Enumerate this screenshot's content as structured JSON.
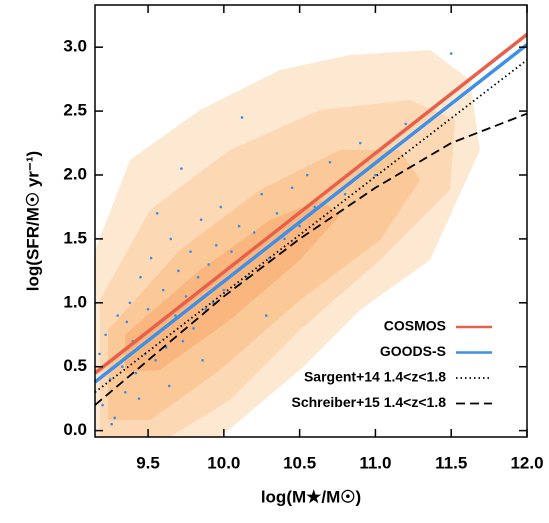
{
  "chart_data": {
    "type": "line",
    "xlabel": "log(M★/M☉)",
    "ylabel": "log(SFR/M☉ yr⁻¹)",
    "xlim": [
      9.15,
      12.0
    ],
    "ylim": [
      -0.05,
      3.33
    ],
    "xticks": [
      9.5,
      {
        "value": 10,
        "label": "10.0"
      },
      10.5,
      {
        "value": 11,
        "label": "11.0"
      },
      11.5,
      {
        "value": 12,
        "label": "12.0"
      }
    ],
    "yticks": [
      {
        "value": 0,
        "label": "0.0"
      },
      0.5,
      {
        "value": 1,
        "label": "1.0"
      },
      1.5,
      {
        "value": 2,
        "label": "2.0"
      },
      2.5,
      {
        "value": 3,
        "label": "3.0"
      }
    ],
    "legend": "lower right",
    "series": [
      {
        "name": "COSMOS",
        "color": "#e8604a",
        "style": "solid",
        "x": [
          9.15,
          12.0
        ],
        "values": [
          0.45,
          3.1
        ]
      },
      {
        "name": "GOODS-S",
        "color": "#3d8fe8",
        "style": "solid",
        "x": [
          9.15,
          12.0
        ],
        "values": [
          0.38,
          3.02
        ]
      },
      {
        "name": "Sargent+14 1.4<z<1.8",
        "color": "#000000",
        "style": "dotted",
        "x": [
          9.15,
          12.0
        ],
        "values": [
          0.3,
          2.9
        ]
      },
      {
        "name": "Schreiber+15 1.4<z<1.8",
        "color": "#000000",
        "style": "dashed",
        "x": [
          9.15,
          9.5,
          10.0,
          10.5,
          11.0,
          11.5,
          12.0
        ],
        "values": [
          0.2,
          0.55,
          1.05,
          1.5,
          1.9,
          2.25,
          2.48
        ]
      }
    ],
    "points": {
      "color": "#3a8ee6",
      "x": [
        9.2,
        9.22,
        9.25,
        9.28,
        9.3,
        9.33,
        9.35,
        9.38,
        9.4,
        9.42,
        9.45,
        9.48,
        9.5,
        9.52,
        9.55,
        9.58,
        9.6,
        9.62,
        9.65,
        9.68,
        9.7,
        9.73,
        9.75,
        9.78,
        9.8,
        9.83,
        9.85,
        9.88,
        9.9,
        9.93,
        9.95,
        9.98,
        10.0,
        10.05,
        10.1,
        10.15,
        10.2,
        10.25,
        10.3,
        10.35,
        10.4,
        10.45,
        10.5,
        10.55,
        10.6,
        10.7,
        10.8,
        10.9,
        11.0,
        11.2,
        9.18,
        9.26,
        9.36,
        9.44,
        9.56,
        9.64,
        9.72,
        9.86,
        10.12,
        10.28,
        11.5
      ],
      "values": [
        0.2,
        0.75,
        0.4,
        0.1,
        0.9,
        0.5,
        0.3,
        1.0,
        0.7,
        0.45,
        1.2,
        0.6,
        0.95,
        1.35,
        0.55,
        0.85,
        1.1,
        0.65,
        1.5,
        0.9,
        1.25,
        0.7,
        1.05,
        1.4,
        0.8,
        1.2,
        1.65,
        0.95,
        1.3,
        1.0,
        1.45,
        1.75,
        1.1,
        1.4,
        1.6,
        1.2,
        1.55,
        1.85,
        1.35,
        1.7,
        1.5,
        1.9,
        1.6,
        2.0,
        1.75,
        2.1,
        1.85,
        2.25,
        2.0,
        2.4,
        0.6,
        0.05,
        0.85,
        0.25,
        1.7,
        0.35,
        2.05,
        0.55,
        2.45,
        0.9,
        2.95
      ]
    }
  }
}
